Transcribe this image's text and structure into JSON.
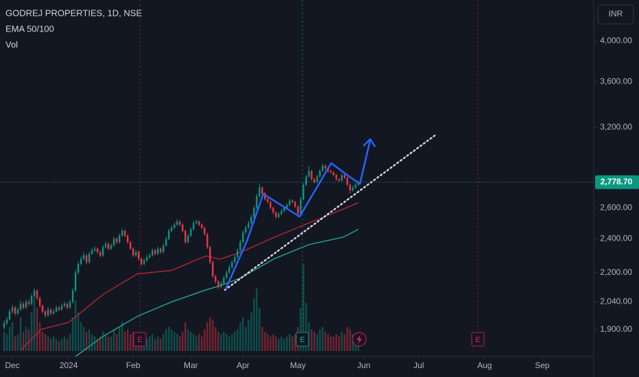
{
  "chart_data": {
    "type": "candlestick",
    "title": "GODREJ PROPERTIES, 1D, NSE",
    "indicators": [
      "EMA 50/100",
      "Vol"
    ],
    "currency": "INR",
    "log_scale": true,
    "grid": false,
    "up_color": "#089981",
    "down_color": "#f23645",
    "ylim": [
      1772,
      4447
    ],
    "yticks": [
      {
        "value": 1900,
        "label": "1,900.00"
      },
      {
        "value": 2040,
        "label": "2,040.00"
      },
      {
        "value": 2200,
        "label": "2,200.00"
      },
      {
        "value": 2400,
        "label": "2,400.00"
      },
      {
        "value": 2600,
        "label": "2,600.00"
      },
      {
        "value": 3200,
        "label": "3,200.00"
      },
      {
        "value": 3600,
        "label": "3,600.00"
      },
      {
        "value": 4000,
        "label": "4,000.00"
      }
    ],
    "xlim": [
      -1.5,
      214.75
    ],
    "xticks": [
      {
        "value": 3,
        "label": "Dec"
      },
      {
        "value": 23.5,
        "label": "2024"
      },
      {
        "value": 47,
        "label": "Feb"
      },
      {
        "value": 68,
        "label": "Mar"
      },
      {
        "value": 87,
        "label": "Apr"
      },
      {
        "value": 107,
        "label": "May"
      },
      {
        "value": 131,
        "label": "Jun"
      },
      {
        "value": 151,
        "label": "Jul"
      },
      {
        "value": 175,
        "label": "Aug"
      },
      {
        "value": 196,
        "label": "Sep"
      }
    ],
    "last_price": {
      "value": 2778.7,
      "label": "2,778.70"
    },
    "events": [
      "E",
      "E",
      "E"
    ],
    "ohlc": [
      [
        1910,
        1945,
        1900,
        1930
      ],
      [
        1930,
        1962,
        1922,
        1950
      ],
      [
        1950,
        2002,
        1944,
        1990
      ],
      [
        1990,
        2024,
        1980,
        2010
      ],
      [
        2010,
        2018,
        1968,
        1980
      ],
      [
        1980,
        2012,
        1972,
        2000
      ],
      [
        2000,
        2046,
        1994,
        2030
      ],
      [
        2030,
        2040,
        2000,
        2010
      ],
      [
        2010,
        2052,
        2004,
        2040
      ],
      [
        2040,
        2050,
        2020,
        2030
      ],
      [
        2030,
        2084,
        2022,
        2070
      ],
      [
        2070,
        2112,
        2062,
        2100
      ],
      [
        2100,
        2108,
        2050,
        2060
      ],
      [
        2060,
        2068,
        2010,
        2020
      ],
      [
        2020,
        2026,
        1980,
        1990
      ],
      [
        1990,
        1998,
        1958,
        1970
      ],
      [
        1970,
        2012,
        1962,
        2000
      ],
      [
        2000,
        2008,
        1970,
        1980
      ],
      [
        1980,
        2002,
        1972,
        1990
      ],
      [
        1990,
        2022,
        1984,
        2010
      ],
      [
        2010,
        2018,
        1990,
        2000
      ],
      [
        2000,
        2032,
        1994,
        2020
      ],
      [
        2020,
        2042,
        2012,
        2030
      ],
      [
        2030,
        2038,
        2000,
        2010
      ],
      [
        2010,
        2052,
        2004,
        2040
      ],
      [
        2040,
        2114,
        2032,
        2100
      ],
      [
        2100,
        2216,
        2092,
        2200
      ],
      [
        2200,
        2266,
        2190,
        2250
      ],
      [
        2250,
        2296,
        2240,
        2280
      ],
      [
        2280,
        2318,
        2270,
        2300
      ],
      [
        2300,
        2308,
        2248,
        2260
      ],
      [
        2260,
        2322,
        2252,
        2310
      ],
      [
        2310,
        2344,
        2302,
        2330
      ],
      [
        2330,
        2354,
        2320,
        2340
      ],
      [
        2340,
        2348,
        2310,
        2320
      ],
      [
        2320,
        2330,
        2288,
        2300
      ],
      [
        2300,
        2362,
        2292,
        2350
      ],
      [
        2350,
        2384,
        2342,
        2370
      ],
      [
        2370,
        2378,
        2330,
        2340
      ],
      [
        2340,
        2372,
        2332,
        2360
      ],
      [
        2360,
        2414,
        2352,
        2400
      ],
      [
        2400,
        2410,
        2370,
        2380
      ],
      [
        2380,
        2432,
        2372,
        2420
      ],
      [
        2420,
        2466,
        2412,
        2450
      ],
      [
        2450,
        2458,
        2410,
        2420
      ],
      [
        2420,
        2428,
        2370,
        2380
      ],
      [
        2380,
        2388,
        2330,
        2340
      ],
      [
        2340,
        2348,
        2290,
        2300
      ],
      [
        2300,
        2332,
        2292,
        2320
      ],
      [
        2320,
        2328,
        2270,
        2280
      ],
      [
        2280,
        2288,
        2238,
        2250
      ],
      [
        2250,
        2282,
        2242,
        2270
      ],
      [
        2270,
        2302,
        2262,
        2290
      ],
      [
        2290,
        2312,
        2282,
        2300
      ],
      [
        2300,
        2342,
        2292,
        2330
      ],
      [
        2330,
        2338,
        2300,
        2310
      ],
      [
        2310,
        2352,
        2302,
        2340
      ],
      [
        2340,
        2348,
        2310,
        2320
      ],
      [
        2320,
        2372,
        2312,
        2360
      ],
      [
        2360,
        2414,
        2352,
        2400
      ],
      [
        2400,
        2464,
        2392,
        2450
      ],
      [
        2450,
        2484,
        2442,
        2470
      ],
      [
        2470,
        2504,
        2462,
        2490
      ],
      [
        2490,
        2526,
        2482,
        2510
      ],
      [
        2510,
        2518,
        2480,
        2490
      ],
      [
        2490,
        2498,
        2440,
        2450
      ],
      [
        2450,
        2458,
        2370,
        2380
      ],
      [
        2380,
        2432,
        2372,
        2420
      ],
      [
        2420,
        2474,
        2412,
        2460
      ],
      [
        2460,
        2514,
        2452,
        2500
      ],
      [
        2500,
        2524,
        2492,
        2510
      ],
      [
        2510,
        2518,
        2480,
        2490
      ],
      [
        2490,
        2498,
        2460,
        2470
      ],
      [
        2470,
        2478,
        2420,
        2430
      ],
      [
        2430,
        2438,
        2340,
        2350
      ],
      [
        2350,
        2358,
        2250,
        2260
      ],
      [
        2260,
        2268,
        2170,
        2180
      ],
      [
        2180,
        2188,
        2140,
        2150
      ],
      [
        2150,
        2158,
        2108,
        2120
      ],
      [
        2120,
        2152,
        2112,
        2140
      ],
      [
        2140,
        2182,
        2132,
        2170
      ],
      [
        2170,
        2212,
        2162,
        2200
      ],
      [
        2200,
        2244,
        2192,
        2230
      ],
      [
        2230,
        2274,
        2222,
        2260
      ],
      [
        2260,
        2302,
        2252,
        2290
      ],
      [
        2290,
        2344,
        2282,
        2330
      ],
      [
        2330,
        2394,
        2322,
        2380
      ],
      [
        2380,
        2454,
        2372,
        2440
      ],
      [
        2440,
        2484,
        2432,
        2470
      ],
      [
        2470,
        2514,
        2462,
        2500
      ],
      [
        2500,
        2554,
        2492,
        2540
      ],
      [
        2540,
        2614,
        2532,
        2600
      ],
      [
        2600,
        2694,
        2592,
        2680
      ],
      [
        2680,
        2770,
        2672,
        2740
      ],
      [
        2740,
        2750,
        2690,
        2700
      ],
      [
        2700,
        2710,
        2650,
        2660
      ],
      [
        2660,
        2668,
        2630,
        2640
      ],
      [
        2640,
        2648,
        2590,
        2600
      ],
      [
        2600,
        2608,
        2560,
        2570
      ],
      [
        2570,
        2578,
        2530,
        2540
      ],
      [
        2540,
        2572,
        2532,
        2560
      ],
      [
        2560,
        2592,
        2552,
        2580
      ],
      [
        2580,
        2612,
        2572,
        2600
      ],
      [
        2600,
        2632,
        2592,
        2620
      ],
      [
        2620,
        2662,
        2612,
        2650
      ],
      [
        2650,
        2658,
        2630,
        2640
      ],
      [
        2640,
        2648,
        2600,
        2610
      ],
      [
        2610,
        2618,
        2540,
        2560
      ],
      [
        2560,
        2674,
        2552,
        2660
      ],
      [
        2660,
        2774,
        2652,
        2760
      ],
      [
        2760,
        2834,
        2752,
        2820
      ],
      [
        2820,
        2900,
        2812,
        2860
      ],
      [
        2860,
        2868,
        2790,
        2800
      ],
      [
        2800,
        2808,
        2770,
        2780
      ],
      [
        2780,
        2832,
        2772,
        2820
      ],
      [
        2820,
        2874,
        2812,
        2860
      ],
      [
        2860,
        2914,
        2852,
        2900
      ],
      [
        2900,
        2908,
        2870,
        2880
      ],
      [
        2880,
        2888,
        2850,
        2860
      ],
      [
        2860,
        2868,
        2840,
        2850
      ],
      [
        2850,
        2858,
        2820,
        2830
      ],
      [
        2830,
        2838,
        2790,
        2800
      ],
      [
        2800,
        2808,
        2780,
        2790
      ],
      [
        2790,
        2842,
        2782,
        2830
      ],
      [
        2830,
        2838,
        2800,
        2810
      ],
      [
        2810,
        2818,
        2750,
        2760
      ],
      [
        2760,
        2768,
        2700,
        2720
      ],
      [
        2720,
        2752,
        2712,
        2740
      ],
      [
        2740,
        2772,
        2732,
        2760
      ],
      [
        2760,
        2790,
        2752,
        2778.7
      ]
    ],
    "volume": [
      400000,
      350000,
      500000,
      600000,
      300000,
      350000,
      700000,
      400000,
      500000,
      450000,
      800000,
      1100000,
      900000,
      600000,
      400000,
      350000,
      300000,
      250000,
      300000,
      250000,
      200000,
      250000,
      300000,
      250000,
      350000,
      700000,
      1050000,
      800000,
      600000,
      500000,
      400000,
      450000,
      350000,
      300000,
      250000,
      300000,
      400000,
      350000,
      300000,
      300000,
      450000,
      350000,
      500000,
      600000,
      400000,
      450000,
      350000,
      400000,
      300000,
      350000,
      400000,
      300000,
      250000,
      300000,
      350000,
      250000,
      300000,
      250000,
      350000,
      450000,
      500000,
      450000,
      400000,
      350000,
      300000,
      400000,
      600000,
      450000,
      400000,
      350000,
      300000,
      350000,
      300000,
      450000,
      600000,
      700000,
      650000,
      500000,
      400000,
      350000,
      400000,
      350000,
      300000,
      350000,
      400000,
      450000,
      600000,
      700000,
      500000,
      650000,
      800000,
      1100000,
      1300000,
      900000,
      500000,
      400000,
      350000,
      300000,
      350000,
      300000,
      250000,
      300000,
      250000,
      300000,
      350000,
      300000,
      350000,
      500000,
      900000,
      1800000,
      1000000,
      600000,
      450000,
      400000,
      350000,
      450000,
      500000,
      400000,
      350000,
      300000,
      300000,
      350000,
      300000,
      400000,
      350000,
      500000,
      450000,
      350000,
      300000,
      250000
    ],
    "vol_ylim": [
      0,
      2000000
    ],
    "ema": [
      {
        "color": "#b22833",
        "x": [
          6,
          13.5,
          23.5,
          36,
          48.5,
          61,
          73.5,
          78.5,
          86,
          98.5,
          111,
          123.5,
          129
        ],
        "values": [
          1801,
          1900,
          1935,
          2079,
          2193,
          2213,
          2297,
          2277,
          2318,
          2411,
          2501,
          2592,
          2636
        ]
      },
      {
        "color": "#22ab94",
        "x": [
          26,
          36,
          48.5,
          61,
          73.5,
          78.5,
          86,
          98.5,
          111,
          123.5,
          129
        ],
        "values": [
          1772,
          1866,
          1965,
          2040,
          2104,
          2126,
          2169,
          2281,
          2365,
          2411,
          2460
        ]
      }
    ]
  }
}
